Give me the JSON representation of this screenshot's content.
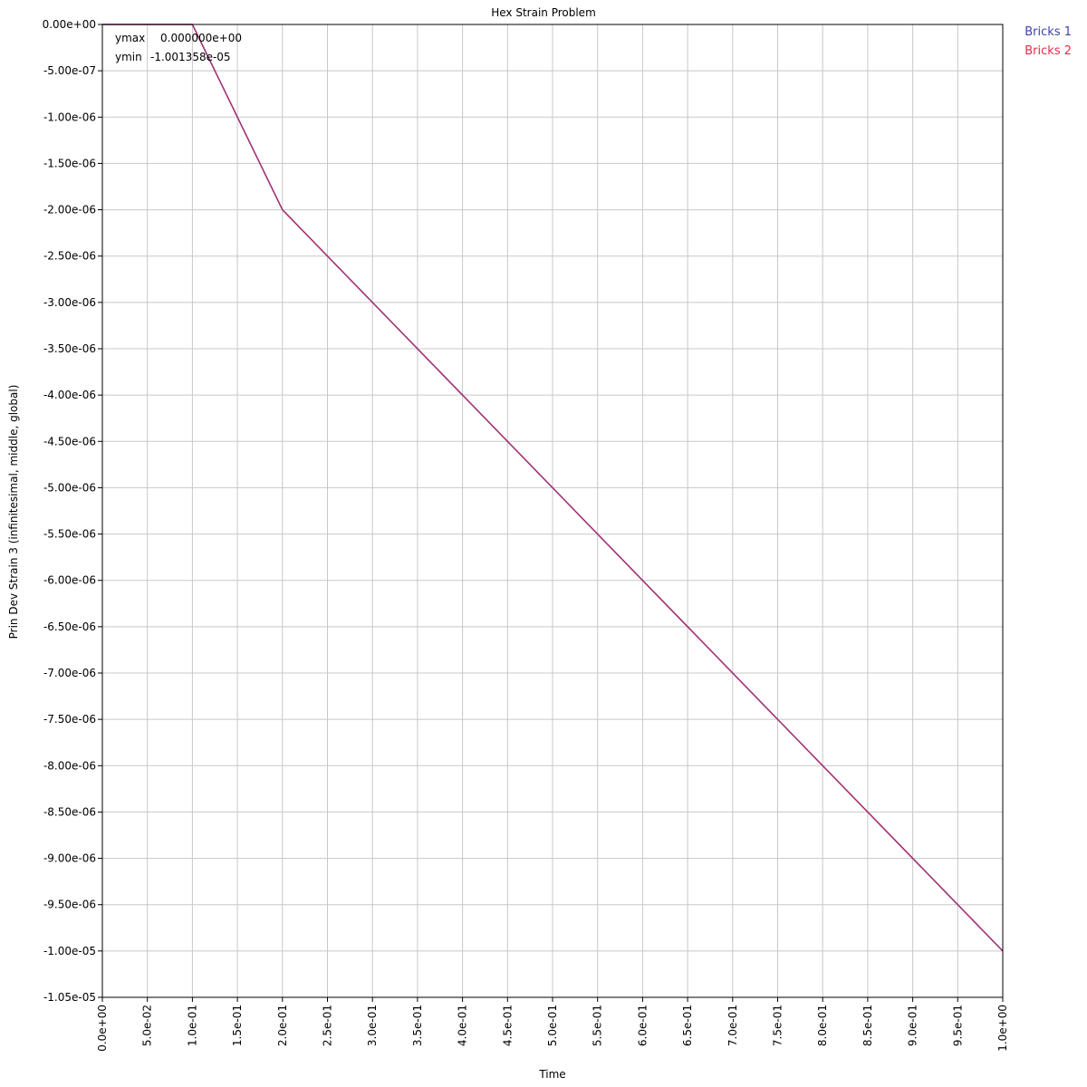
{
  "chart_data": {
    "type": "line",
    "title": "Hex Strain Problem",
    "xlabel": "Time",
    "ylabel": "Prin Dev Strain 3 (infinitesimal, middle, global)",
    "xlim": [
      0.0,
      1.0
    ],
    "ylim": [
      -1.05e-05,
      0.0
    ],
    "grid": true,
    "legend_position": "outside-top-right",
    "x_ticks": [
      "0.0e+00",
      "5.0e-02",
      "1.0e-01",
      "1.5e-01",
      "2.0e-01",
      "2.5e-01",
      "3.0e-01",
      "3.5e-01",
      "4.0e-01",
      "4.5e-01",
      "5.0e-01",
      "5.5e-01",
      "6.0e-01",
      "6.5e-01",
      "7.0e-01",
      "7.5e-01",
      "8.0e-01",
      "8.5e-01",
      "9.0e-01",
      "9.5e-01",
      "1.0e+00"
    ],
    "y_ticks": [
      "0.00e+00",
      "-5.00e-07",
      "-1.00e-06",
      "-1.50e-06",
      "-2.00e-06",
      "-2.50e-06",
      "-3.00e-06",
      "-3.50e-06",
      "-4.00e-06",
      "-4.50e-06",
      "-5.00e-06",
      "-5.50e-06",
      "-6.00e-06",
      "-6.50e-06",
      "-7.00e-06",
      "-7.50e-06",
      "-8.00e-06",
      "-8.50e-06",
      "-9.00e-06",
      "-9.50e-06",
      "-1.00e-05",
      "-1.05e-05"
    ],
    "stats": {
      "ymax_label": "ymax",
      "ymax_value": "0.000000e+00",
      "ymin_label": "ymin",
      "ymin_value": "-1.001358e-05"
    },
    "series": [
      {
        "name": "Bricks 1",
        "color": "#4040b0",
        "x": [
          0.0,
          0.1,
          0.2,
          1.0
        ],
        "y": [
          0.0,
          0.0,
          -2e-06,
          -1e-05
        ]
      },
      {
        "name": "Bricks 2",
        "color": "#e8284a",
        "x": [
          0.0,
          0.1,
          0.2,
          1.0
        ],
        "y": [
          0.0,
          0.0,
          -2e-06,
          -1e-05
        ]
      }
    ]
  }
}
